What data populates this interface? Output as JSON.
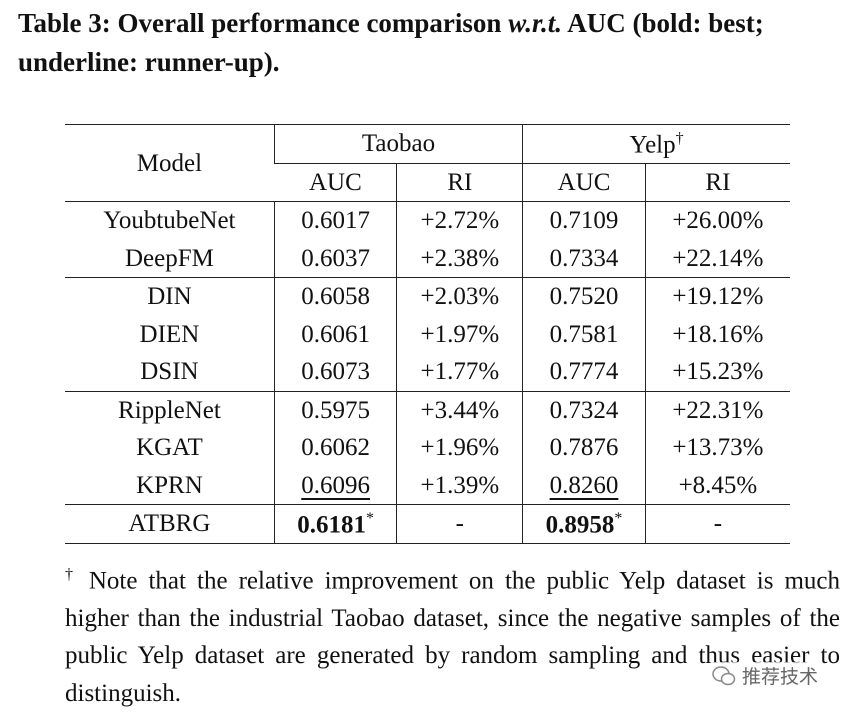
{
  "caption": {
    "label": "Table 3:",
    "before": "Overall performance comparison",
    "italic": "w.r.t.",
    "after": "AUC (bold: best; underline: runner-up)."
  },
  "table": {
    "model_header": "Model",
    "groups": [
      {
        "name": "Taobao"
      },
      {
        "name": "Yelp",
        "mark": "†"
      }
    ],
    "subheaders": [
      "AUC",
      "RI",
      "AUC",
      "RI"
    ],
    "sections": [
      [
        [
          "YoubtubeNet",
          "0.6017",
          "+2.72%",
          "0.7109",
          "+26.00%"
        ],
        [
          "DeepFM",
          "0.6037",
          "+2.38%",
          "0.7334",
          "+22.14%"
        ]
      ],
      [
        [
          "DIN",
          "0.6058",
          "+2.03%",
          "0.7520",
          "+19.12%"
        ],
        [
          "DIEN",
          "0.6061",
          "+1.97%",
          "0.7581",
          "+18.16%"
        ],
        [
          "DSIN",
          "0.6073",
          "+1.77%",
          "0.7774",
          "+15.23%"
        ]
      ],
      [
        [
          "RippleNet",
          "0.5975",
          "+3.44%",
          "0.7324",
          "+22.31%"
        ],
        [
          "KGAT",
          "0.6062",
          "+1.96%",
          "0.7876",
          "+13.73%"
        ],
        [
          "KPRN",
          {
            "text": "0.6096",
            "style": "underline"
          },
          "+1.39%",
          {
            "text": "0.8260",
            "style": "underline"
          },
          "+8.45%"
        ]
      ],
      [
        [
          "ATBRG",
          {
            "text": "0.6181",
            "mark": "*",
            "style": "bold"
          },
          "-",
          {
            "text": "0.8958",
            "mark": "*",
            "style": "bold"
          },
          "-"
        ]
      ]
    ]
  },
  "footnote": {
    "mark": "†",
    "text": "Note that the relative improvement on the public Yelp dataset is much higher than the industrial Taobao dataset, since the negative samples of the public Yelp dataset are generated by random sampling and thus easier to distinguish."
  },
  "watermark": "推荐技术"
}
